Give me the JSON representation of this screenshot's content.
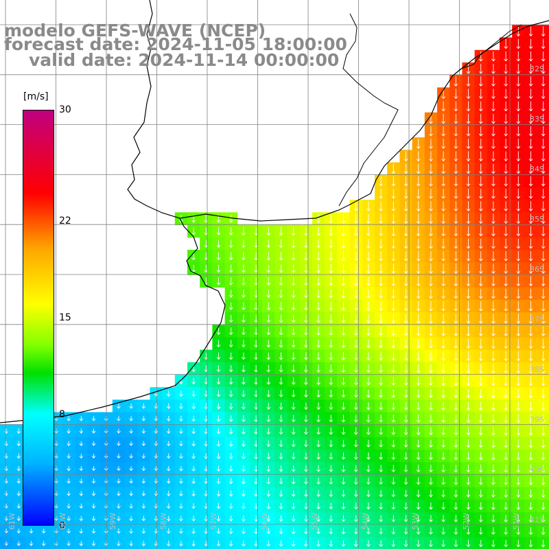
{
  "title": {
    "model": "modelo GEFS-WAVE (NCEP)",
    "forecast": "forecast date: 2024-11-05 18:00:00",
    "valid": "valid date: 2024-11-14 00:00:00"
  },
  "colorbar": {
    "unit": "[m/s]",
    "ticks": [
      {
        "value": 30,
        "label": "30"
      },
      {
        "value": 22,
        "label": "22"
      },
      {
        "value": 15,
        "label": "15"
      },
      {
        "value": 8,
        "label": "8"
      },
      {
        "value": 0,
        "label": "0"
      }
    ],
    "range": [
      0,
      30
    ],
    "colors": [
      "#0000ff",
      "#00b4ff",
      "#00ffff",
      "#00e000",
      "#80ff00",
      "#ffff00",
      "#ffa500",
      "#ff0000",
      "#c0007f"
    ]
  },
  "map": {
    "lon_range": [
      -61.7,
      -50.7
    ],
    "lat_range": [
      -41.3,
      -31.0
    ],
    "land_color": "#ffffff",
    "coast_color": "#000000",
    "grid_color": "#808080",
    "lat_labels": [
      "32S",
      "33S",
      "34S",
      "35S",
      "36S",
      "37S",
      "38S",
      "39S",
      "40S",
      "41S"
    ],
    "lon_labels": [
      "61W",
      "60W",
      "59W",
      "58W",
      "57W",
      "56W",
      "55W",
      "54W",
      "53W",
      "52W",
      "51W"
    ],
    "wind_direction": "from north"
  }
}
